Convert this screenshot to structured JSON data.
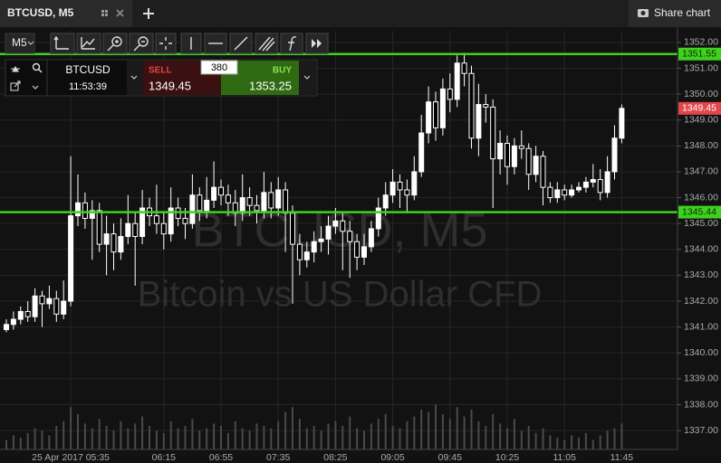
{
  "tab": {
    "title": "BTCUSD, M5"
  },
  "share": "Share chart",
  "toolbar": {
    "timeframe": "M5"
  },
  "order_panel": {
    "symbol": "BTCUSD",
    "time": "11:53:39",
    "sell_label": "SELL",
    "sell_price": 1349.45,
    "spread": 380,
    "buy_label": "BUY",
    "buy_price": 1353.25
  },
  "chart_data": {
    "type": "candlestick",
    "watermark_title": "BTCUSD, M5",
    "watermark_subtitle": "Bitcoin vs US Dollar CFD",
    "up_color": "#ffffff",
    "down_color": "#000000",
    "wick_color": "#ffffff",
    "volume_color": "#4a4a4a",
    "grid": true,
    "categories": [
      null,
      null,
      null,
      null,
      null,
      null,
      null,
      null,
      null,
      "25 Apr 2017 05:35",
      null,
      null,
      null,
      null,
      null,
      null,
      null,
      null,
      null,
      null,
      null,
      null,
      "06:15",
      null,
      null,
      null,
      null,
      null,
      null,
      null,
      "06:55",
      null,
      null,
      null,
      null,
      null,
      null,
      null,
      "07:35",
      null,
      null,
      null,
      null,
      null,
      null,
      null,
      "08:25",
      null,
      null,
      null,
      null,
      null,
      null,
      null,
      "09:05",
      null,
      null,
      null,
      null,
      null,
      null,
      null,
      "09:45",
      null,
      null,
      null,
      null,
      null,
      null,
      null,
      "10:25",
      null,
      null,
      null,
      null,
      null,
      null,
      null,
      "11:05",
      null,
      null,
      null,
      null,
      null,
      null,
      null,
      "11:45"
    ],
    "candles": [
      [
        1340.9,
        1341.3,
        1340.8,
        1341.1
      ],
      [
        1341.1,
        1341.6,
        1340.9,
        1341.3
      ],
      [
        1341.3,
        1341.8,
        1341.1,
        1341.6
      ],
      [
        1341.6,
        1342.0,
        1341.2,
        1341.4
      ],
      [
        1341.4,
        1342.5,
        1341.2,
        1342.2
      ],
      [
        1342.2,
        1342.4,
        1341.0,
        1341.9
      ],
      [
        1341.9,
        1342.6,
        1341.7,
        1342.1
      ],
      [
        1342.1,
        1342.4,
        1341.2,
        1341.5
      ],
      [
        1341.5,
        1342.8,
        1341.3,
        1342.0
      ],
      [
        1342.0,
        1347.6,
        1341.8,
        1345.3
      ],
      [
        1345.3,
        1346.9,
        1344.9,
        1345.8
      ],
      [
        1345.8,
        1346.2,
        1344.8,
        1345.2
      ],
      [
        1345.2,
        1345.9,
        1343.6,
        1345.5
      ],
      [
        1345.5,
        1345.8,
        1343.9,
        1344.2
      ],
      [
        1344.2,
        1345.3,
        1343.0,
        1344.6
      ],
      [
        1344.6,
        1345.0,
        1343.2,
        1343.9
      ],
      [
        1343.9,
        1345.2,
        1343.6,
        1344.5
      ],
      [
        1344.5,
        1346.1,
        1344.2,
        1345.0
      ],
      [
        1345.0,
        1345.4,
        1342.6,
        1344.5
      ],
      [
        1344.5,
        1346.3,
        1344.2,
        1345.6
      ],
      [
        1345.6,
        1346.0,
        1344.9,
        1345.3
      ],
      [
        1345.3,
        1346.5,
        1344.6,
        1345.0
      ],
      [
        1345.0,
        1345.4,
        1344.0,
        1344.6
      ],
      [
        1344.6,
        1346.4,
        1344.3,
        1345.6
      ],
      [
        1345.6,
        1346.0,
        1344.9,
        1345.2
      ],
      [
        1345.2,
        1345.6,
        1344.4,
        1345.0
      ],
      [
        1345.0,
        1346.9,
        1344.8,
        1346.1
      ],
      [
        1346.1,
        1346.4,
        1345.1,
        1345.5
      ],
      [
        1345.5,
        1346.8,
        1345.2,
        1345.9
      ],
      [
        1345.9,
        1347.4,
        1345.6,
        1346.4
      ],
      [
        1346.4,
        1346.7,
        1345.7,
        1346.1
      ],
      [
        1346.1,
        1346.5,
        1345.3,
        1345.8
      ],
      [
        1345.8,
        1346.3,
        1344.9,
        1345.4
      ],
      [
        1345.4,
        1346.9,
        1345.1,
        1346.0
      ],
      [
        1346.0,
        1346.4,
        1345.3,
        1345.7
      ],
      [
        1345.7,
        1346.1,
        1345.0,
        1345.5
      ],
      [
        1345.5,
        1347.0,
        1345.2,
        1346.2
      ],
      [
        1346.2,
        1346.6,
        1345.2,
        1345.6
      ],
      [
        1345.6,
        1346.8,
        1345.3,
        1346.3
      ],
      [
        1346.3,
        1346.6,
        1343.9,
        1345.4
      ],
      [
        1345.4,
        1345.7,
        1341.9,
        1344.2
      ],
      [
        1344.2,
        1344.6,
        1343.0,
        1343.6
      ],
      [
        1343.6,
        1344.3,
        1343.3,
        1343.9
      ],
      [
        1343.9,
        1344.7,
        1343.5,
        1344.3
      ],
      [
        1344.3,
        1344.9,
        1343.9,
        1344.4
      ],
      [
        1344.4,
        1345.3,
        1343.8,
        1344.9
      ],
      [
        1344.9,
        1345.6,
        1344.6,
        1345.1
      ],
      [
        1345.1,
        1345.4,
        1343.2,
        1344.7
      ],
      [
        1344.7,
        1345.1,
        1342.9,
        1344.3
      ],
      [
        1344.3,
        1344.6,
        1343.2,
        1343.7
      ],
      [
        1343.7,
        1344.6,
        1343.4,
        1344.1
      ],
      [
        1344.1,
        1345.1,
        1343.9,
        1344.8
      ],
      [
        1344.8,
        1346.0,
        1344.5,
        1345.6
      ],
      [
        1345.6,
        1346.6,
        1345.3,
        1346.1
      ],
      [
        1346.1,
        1347.1,
        1345.8,
        1346.6
      ],
      [
        1346.6,
        1346.9,
        1345.6,
        1346.3
      ],
      [
        1346.3,
        1346.7,
        1345.4,
        1346.1
      ],
      [
        1346.1,
        1347.6,
        1345.9,
        1347.0
      ],
      [
        1347.0,
        1349.2,
        1346.8,
        1348.5
      ],
      [
        1348.5,
        1350.3,
        1348.1,
        1349.7
      ],
      [
        1349.7,
        1350.1,
        1348.2,
        1348.7
      ],
      [
        1348.7,
        1350.6,
        1348.4,
        1350.2
      ],
      [
        1350.2,
        1350.8,
        1349.3,
        1349.8
      ],
      [
        1349.8,
        1351.5,
        1349.5,
        1351.2
      ],
      [
        1351.2,
        1351.6,
        1350.3,
        1350.8
      ],
      [
        1350.8,
        1351.1,
        1347.9,
        1348.3
      ],
      [
        1348.3,
        1350.4,
        1347.6,
        1349.6
      ],
      [
        1349.6,
        1350.0,
        1348.9,
        1349.5
      ],
      [
        1349.5,
        1349.8,
        1345.6,
        1347.5
      ],
      [
        1347.5,
        1348.6,
        1346.9,
        1348.1
      ],
      [
        1348.1,
        1348.4,
        1346.5,
        1347.2
      ],
      [
        1347.2,
        1348.3,
        1346.9,
        1348.0
      ],
      [
        1348.0,
        1348.6,
        1347.5,
        1347.9
      ],
      [
        1347.9,
        1348.1,
        1346.3,
        1346.9
      ],
      [
        1346.9,
        1348.0,
        1346.6,
        1347.6
      ],
      [
        1347.6,
        1347.8,
        1345.7,
        1346.4
      ],
      [
        1346.4,
        1346.6,
        1345.8,
        1346.0
      ],
      [
        1346.0,
        1346.6,
        1345.8,
        1346.3
      ],
      [
        1346.3,
        1346.5,
        1345.9,
        1346.1
      ],
      [
        1346.1,
        1346.5,
        1346.0,
        1346.3
      ],
      [
        1346.3,
        1346.6,
        1346.2,
        1346.4
      ],
      [
        1346.4,
        1346.8,
        1346.2,
        1346.6
      ],
      [
        1346.6,
        1347.3,
        1346.4,
        1346.7
      ],
      [
        1346.7,
        1347.1,
        1345.9,
        1346.2
      ],
      [
        1346.2,
        1347.6,
        1346.0,
        1347.0
      ],
      [
        1347.0,
        1348.8,
        1346.7,
        1348.3
      ],
      [
        1348.3,
        1349.6,
        1348.1,
        1349.45
      ]
    ],
    "volume": [
      4,
      6,
      5,
      7,
      9,
      8,
      6,
      10,
      12,
      18,
      15,
      11,
      9,
      13,
      10,
      8,
      12,
      9,
      11,
      14,
      10,
      8,
      7,
      12,
      9,
      10,
      13,
      8,
      9,
      11,
      10,
      7,
      12,
      9,
      8,
      11,
      10,
      9,
      12,
      16,
      18,
      13,
      9,
      10,
      8,
      11,
      12,
      10,
      14,
      9,
      8,
      11,
      13,
      15,
      10,
      9,
      12,
      14,
      17,
      16,
      19,
      15,
      13,
      18,
      14,
      17,
      12,
      10,
      15,
      11,
      9,
      13,
      8,
      10,
      7,
      9,
      6,
      5,
      4,
      6,
      5,
      7,
      4,
      6,
      8,
      9,
      11
    ],
    "ylim": [
      1336.27,
      1352.45
    ],
    "yticks": [
      {
        "value": 1337,
        "label": "1337.00"
      },
      {
        "value": 1338,
        "label": "1338.00"
      },
      {
        "value": 1339,
        "label": "1339.00"
      },
      {
        "value": 1340,
        "label": "1340.00"
      },
      {
        "value": 1341,
        "label": "1341.00"
      },
      {
        "value": 1342,
        "label": "1342.00"
      },
      {
        "value": 1343,
        "label": "1343.00"
      },
      {
        "value": 1344,
        "label": "1344.00"
      },
      {
        "value": 1345,
        "label": "1345.00"
      },
      {
        "value": 1346,
        "label": "1346.00"
      },
      {
        "value": 1347,
        "label": "1347.00"
      },
      {
        "value": 1348,
        "label": "1348.00"
      },
      {
        "value": 1349,
        "label": "1349.00"
      },
      {
        "value": 1350,
        "label": "1350.00"
      },
      {
        "value": 1351,
        "label": "1351.00"
      },
      {
        "value": 1352,
        "label": "1352.00"
      }
    ],
    "level_lines": [
      {
        "value": 1351.55,
        "color": "#3fd11f"
      },
      {
        "value": 1345.44,
        "color": "#3fd11f"
      }
    ],
    "last_price": {
      "value": 1349.45,
      "color": "#e0474c"
    }
  }
}
